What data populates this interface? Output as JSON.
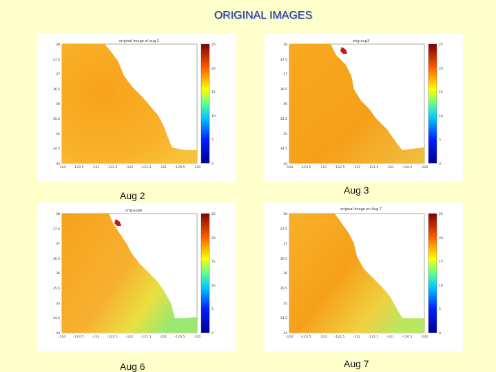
{
  "slide": {
    "title": "ORIGINAL IMAGES"
  },
  "panels": [
    {
      "caption": "Aug 2",
      "plot_title": "original image of aug 2",
      "x_ticks": [
        "-124",
        "-123.5",
        "-123",
        "-122.5",
        "-122",
        "-121.5",
        "-121",
        "-120.5",
        "-120"
      ],
      "y_ticks": [
        "38",
        "37.5",
        "37",
        "36.5",
        "36",
        "35.5",
        "35",
        "34.5",
        "34"
      ],
      "colorbar_ticks": [
        "25",
        "20",
        "15",
        "10",
        "5",
        "0"
      ]
    },
    {
      "caption": "Aug 3",
      "plot_title": "orig-aug3",
      "x_ticks": [
        "-124",
        "-123.5",
        "-123",
        "-122.5",
        "-122",
        "-121.5",
        "-121",
        "-120.5",
        "-120"
      ],
      "y_ticks": [
        "38",
        "37.5",
        "37",
        "36.5",
        "36",
        "35.5",
        "35",
        "34.5",
        "34"
      ],
      "colorbar_ticks": [
        "25",
        "20",
        "15",
        "10",
        "5",
        "0"
      ]
    },
    {
      "caption": "Aug 6",
      "plot_title": "orig-aug6",
      "x_ticks": [
        "-124",
        "-123.5",
        "-123",
        "-122.5",
        "-122",
        "-121.5",
        "-121",
        "-120.5",
        "-120"
      ],
      "y_ticks": [
        "38",
        "37.5",
        "37",
        "36.5",
        "36",
        "35.5",
        "35",
        "34.5",
        "34"
      ],
      "colorbar_ticks": [
        "25",
        "20",
        "15",
        "10",
        "5",
        "0"
      ]
    },
    {
      "caption": "Aug 7",
      "plot_title": "original image on Aug 7",
      "x_ticks": [
        "-124",
        "-123.5",
        "-123",
        "-122.5",
        "-122",
        "-121.5",
        "-121",
        "-120.5",
        "-120"
      ],
      "y_ticks": [
        "38",
        "37.5",
        "37",
        "36.5",
        "36",
        "35.5",
        "35",
        "34.5",
        "34"
      ],
      "colorbar_ticks": [
        "25",
        "20",
        "15",
        "10",
        "5",
        "0"
      ]
    }
  ]
}
